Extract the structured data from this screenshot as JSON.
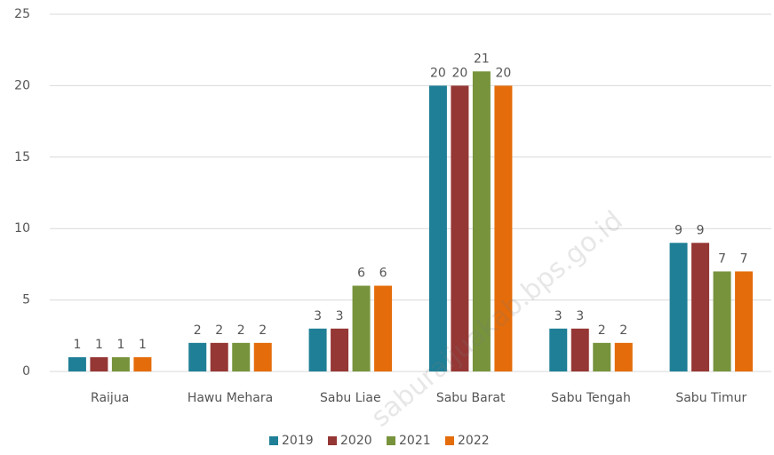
{
  "chart_data": {
    "type": "bar",
    "categories": [
      "Raijua",
      "Hawu Mehara",
      "Sabu Liae",
      "Sabu Barat",
      "Sabu Tengah",
      "Sabu Timur"
    ],
    "series": [
      {
        "name": "2019",
        "color": "#1f7f96",
        "values": [
          1,
          2,
          3,
          20,
          3,
          9
        ]
      },
      {
        "name": "2020",
        "color": "#953735",
        "values": [
          1,
          2,
          3,
          20,
          3,
          9
        ]
      },
      {
        "name": "2021",
        "color": "#77933c",
        "values": [
          1,
          2,
          6,
          21,
          2,
          7
        ]
      },
      {
        "name": "2022",
        "color": "#e46c0a",
        "values": [
          1,
          2,
          6,
          20,
          2,
          7
        ]
      }
    ],
    "ylim": [
      0,
      25
    ],
    "yticks": [
      0,
      5,
      10,
      15,
      20,
      25
    ],
    "grid": true,
    "legend": "bottom",
    "watermark": "saburaijuakab.bps.go.id"
  }
}
